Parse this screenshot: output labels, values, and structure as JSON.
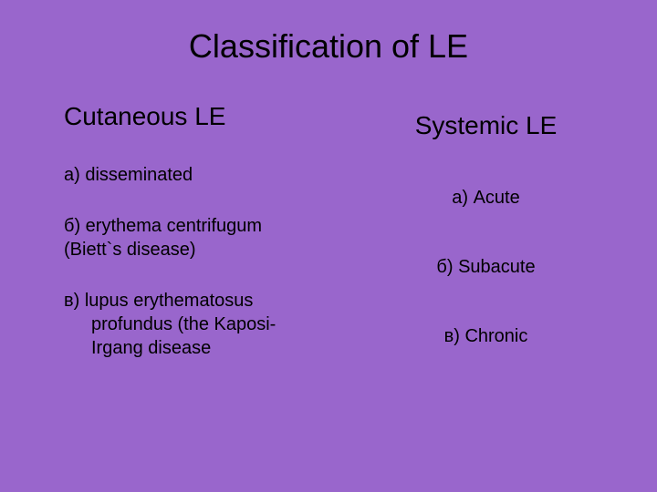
{
  "slide": {
    "title": "Classification of LE",
    "background_color": "#9966cc",
    "text_color": "#000000",
    "title_fontsize": 36,
    "subheading_fontsize": 28,
    "item_fontsize": 20,
    "left": {
      "heading": "Cutaneous LE",
      "items": [
        {
          "label": "а) disseminated"
        },
        {
          "label": "б) erythema centrifugum (Biett`s disease)"
        },
        {
          "prefix": "в) lupus erythematosus",
          "cont": "profundus (the Kaposi-Irgang disease"
        }
      ]
    },
    "right": {
      "heading": "Systemic LE",
      "items": [
        {
          "label": "а) Acute"
        },
        {
          "label": "б) Subacute"
        },
        {
          "label": "в) Chronic"
        }
      ]
    }
  }
}
